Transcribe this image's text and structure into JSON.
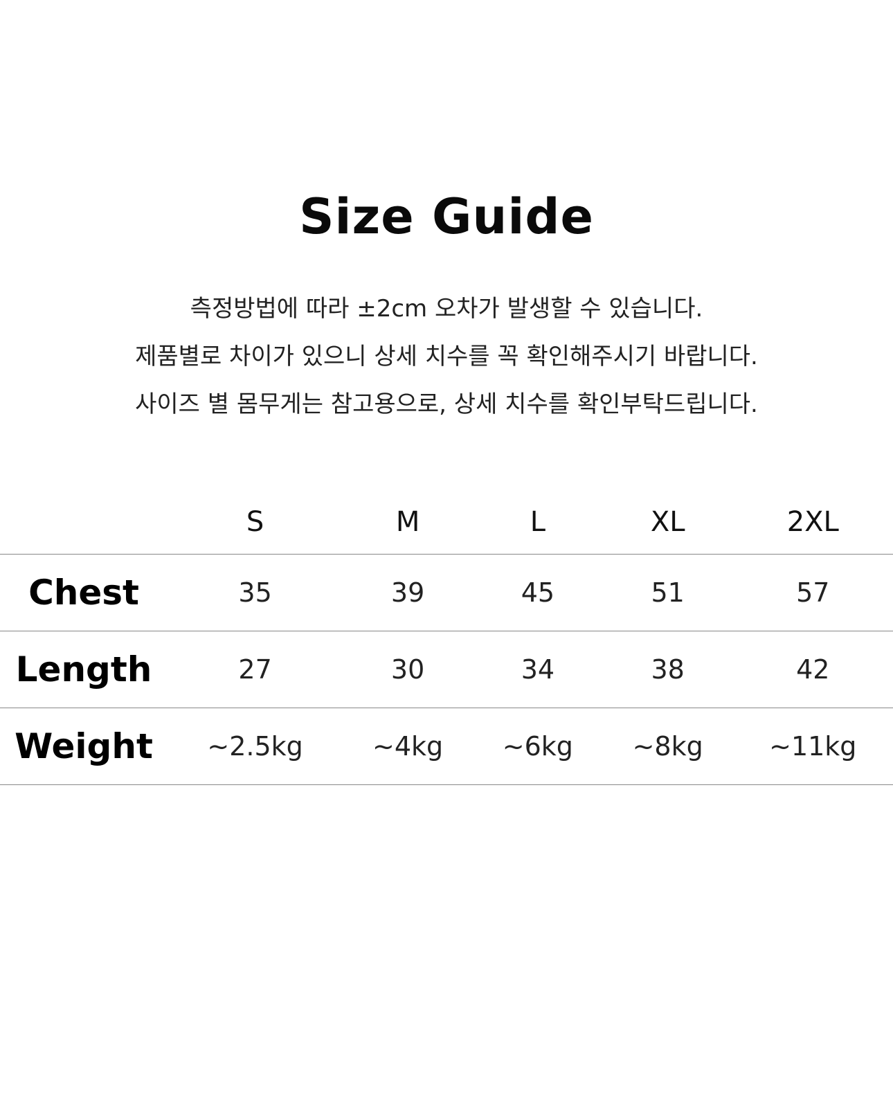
{
  "title": "Size Guide",
  "notes": [
    "측정방법에 따라 ±2cm 오차가 발생할 수 있습니다.",
    "제품별로 차이가 있으니 상세 치수를 꼭 확인해주시기 바랍니다.",
    "사이즈 별 몸무게는 참고용으로, 상세 치수를 확인부탁드립니다."
  ],
  "table": {
    "sizes": [
      "S",
      "M",
      "L",
      "XL",
      "2XL"
    ],
    "rows": [
      {
        "label": "Chest",
        "values": [
          "35",
          "39",
          "45",
          "51",
          "57"
        ]
      },
      {
        "label": "Length",
        "values": [
          "27",
          "30",
          "34",
          "38",
          "42"
        ]
      },
      {
        "label": "Weight",
        "values": [
          "~2.5kg",
          "~4kg",
          "~6kg",
          "~8kg",
          "~11kg"
        ]
      }
    ]
  }
}
